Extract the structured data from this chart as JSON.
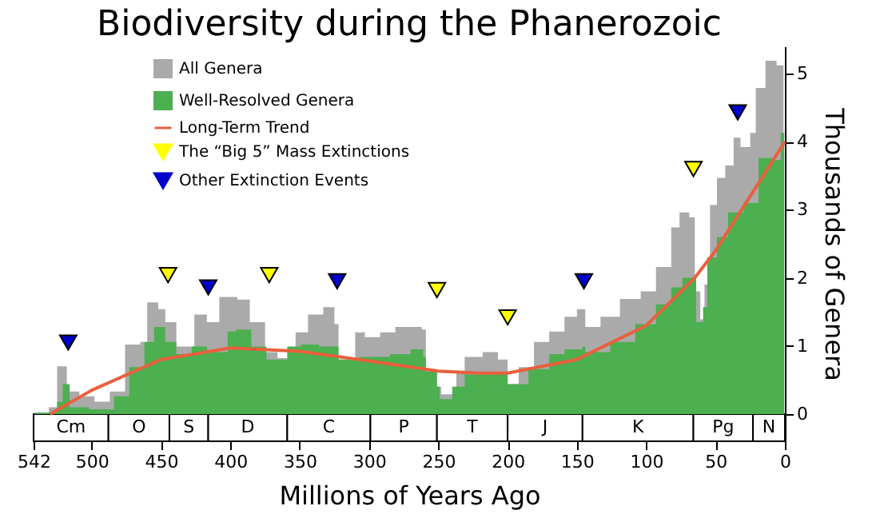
{
  "chart_data": {
    "type": "area",
    "title": "Biodiversity during the Phanerozoic",
    "xlabel": "Millions of Years Ago",
    "ylabel": "Thousands of Genera",
    "xlim": [
      542,
      0
    ],
    "xticks": [
      542,
      500,
      450,
      400,
      350,
      300,
      250,
      200,
      150,
      100,
      50,
      0
    ],
    "ylim": [
      -0.4,
      5.4
    ],
    "yticks": [
      0,
      1,
      2,
      3,
      4,
      5
    ],
    "grid": false,
    "legend": "top left",
    "series": [
      {
        "name": "All Genera",
        "color": "#aaaaaa",
        "x": [
          541,
          531,
          525,
          521,
          518,
          509,
          498,
          487,
          476,
          465,
          460,
          452,
          447,
          439,
          426,
          417,
          408,
          395,
          386,
          375,
          366,
          353,
          344,
          333,
          325,
          322,
          310,
          303,
          292,
          281,
          270,
          262,
          259,
          251,
          248,
          237,
          231,
          218,
          207,
          200,
          192,
          181,
          170,
          159,
          150,
          144,
          133,
          119,
          104,
          93,
          82,
          76,
          69,
          65,
          61,
          58,
          54,
          49,
          43,
          37,
          32,
          25,
          21,
          14,
          6,
          1
        ],
        "values": [
          0.02,
          0.1,
          0.7,
          0.7,
          0.33,
          0.26,
          0.18,
          0.33,
          1.02,
          1.06,
          1.64,
          1.54,
          1.35,
          0.99,
          1.46,
          1.35,
          1.72,
          1.68,
          1.35,
          0.91,
          0.82,
          1.2,
          1.46,
          1.57,
          1.32,
          0.8,
          1.2,
          1.13,
          1.2,
          1.28,
          1.28,
          1.24,
          0.66,
          0.4,
          0.29,
          0.62,
          0.84,
          0.91,
          0.8,
          0.44,
          0.69,
          1.06,
          1.21,
          1.43,
          1.54,
          1.28,
          1.43,
          1.69,
          1.8,
          2.16,
          2.74,
          2.96,
          2.89,
          1.8,
          1.39,
          1.9,
          3.07,
          3.47,
          3.65,
          4.06,
          3.92,
          4.13,
          4.79,
          5.19,
          5.12,
          5.3
        ]
      },
      {
        "name": "Well-Resolved Genera",
        "color": "#4caf50",
        "x": [
          541,
          525,
          521,
          516,
          502,
          484,
          473,
          462,
          455,
          447,
          439,
          428,
          417,
          402,
          396,
          385,
          374,
          359,
          349,
          336,
          325,
          322,
          307,
          285,
          270,
          261,
          259,
          251,
          249,
          240,
          231,
          211,
          200,
          185,
          170,
          159,
          146,
          144,
          126,
          108,
          93,
          82,
          74,
          66,
          64,
          59,
          56,
          49,
          41,
          30,
          19,
          8,
          3,
          0.5
        ],
        "values": [
          0.02,
          0.18,
          0.44,
          0.1,
          0.07,
          0.26,
          0.69,
          1.06,
          1.28,
          1.06,
          0.88,
          0.99,
          0.91,
          1.21,
          1.24,
          0.99,
          0.8,
          0.99,
          1.02,
          0.99,
          0.99,
          0.8,
          0.84,
          0.88,
          0.95,
          0.84,
          0.62,
          0.4,
          0.22,
          0.4,
          0.58,
          0.62,
          0.44,
          0.66,
          0.88,
          0.95,
          0.99,
          0.91,
          1.06,
          1.32,
          1.61,
          1.86,
          2.0,
          2.0,
          1.35,
          1.57,
          2.3,
          2.6,
          2.96,
          3.1,
          3.76,
          3.73,
          4.13,
          4.24
        ]
      },
      {
        "name": "Long-Term Trend",
        "type": "line",
        "color": "#e8603c",
        "x": [
          530,
          500,
          450,
          400,
          350,
          300,
          250,
          220,
          200,
          150,
          100,
          65,
          50,
          25,
          0
        ],
        "values": [
          0,
          0.35,
          0.8,
          0.97,
          0.92,
          0.78,
          0.63,
          0.6,
          0.6,
          0.8,
          1.3,
          2.0,
          2.4,
          3.2,
          4.0
        ]
      },
      {
        "name": "The “Big 5” Mass Extinctions",
        "type": "scatter",
        "marker": "triangle",
        "color": "#ffff00",
        "x": [
          445,
          372,
          251,
          200,
          66
        ],
        "values": [
          2.04,
          2.04,
          1.82,
          1.42,
          3.6
        ]
      },
      {
        "name": "Other Extinction Events",
        "type": "scatter",
        "marker": "triangle",
        "color": "#0000cc",
        "x": [
          517,
          416,
          323,
          145,
          34
        ],
        "values": [
          1.05,
          1.86,
          1.95,
          1.95,
          4.43
        ]
      }
    ],
    "bands": [
      {
        "axis": "x",
        "from": 542,
        "to": 488,
        "label": "Cm"
      },
      {
        "axis": "x",
        "from": 488,
        "to": 444,
        "label": "O"
      },
      {
        "axis": "x",
        "from": 444,
        "to": 416,
        "label": "S"
      },
      {
        "axis": "x",
        "from": 416,
        "to": 359,
        "label": "D"
      },
      {
        "axis": "x",
        "from": 359,
        "to": 299,
        "label": "C"
      },
      {
        "axis": "x",
        "from": 299,
        "to": 251,
        "label": "P"
      },
      {
        "axis": "x",
        "from": 251,
        "to": 200,
        "label": "T"
      },
      {
        "axis": "x",
        "from": 200,
        "to": 146,
        "label": "J"
      },
      {
        "axis": "x",
        "from": 146,
        "to": 66,
        "label": "K"
      },
      {
        "axis": "x",
        "from": 66,
        "to": 23,
        "label": "Pg"
      },
      {
        "axis": "x",
        "from": 23,
        "to": 0,
        "label": "N"
      }
    ]
  }
}
